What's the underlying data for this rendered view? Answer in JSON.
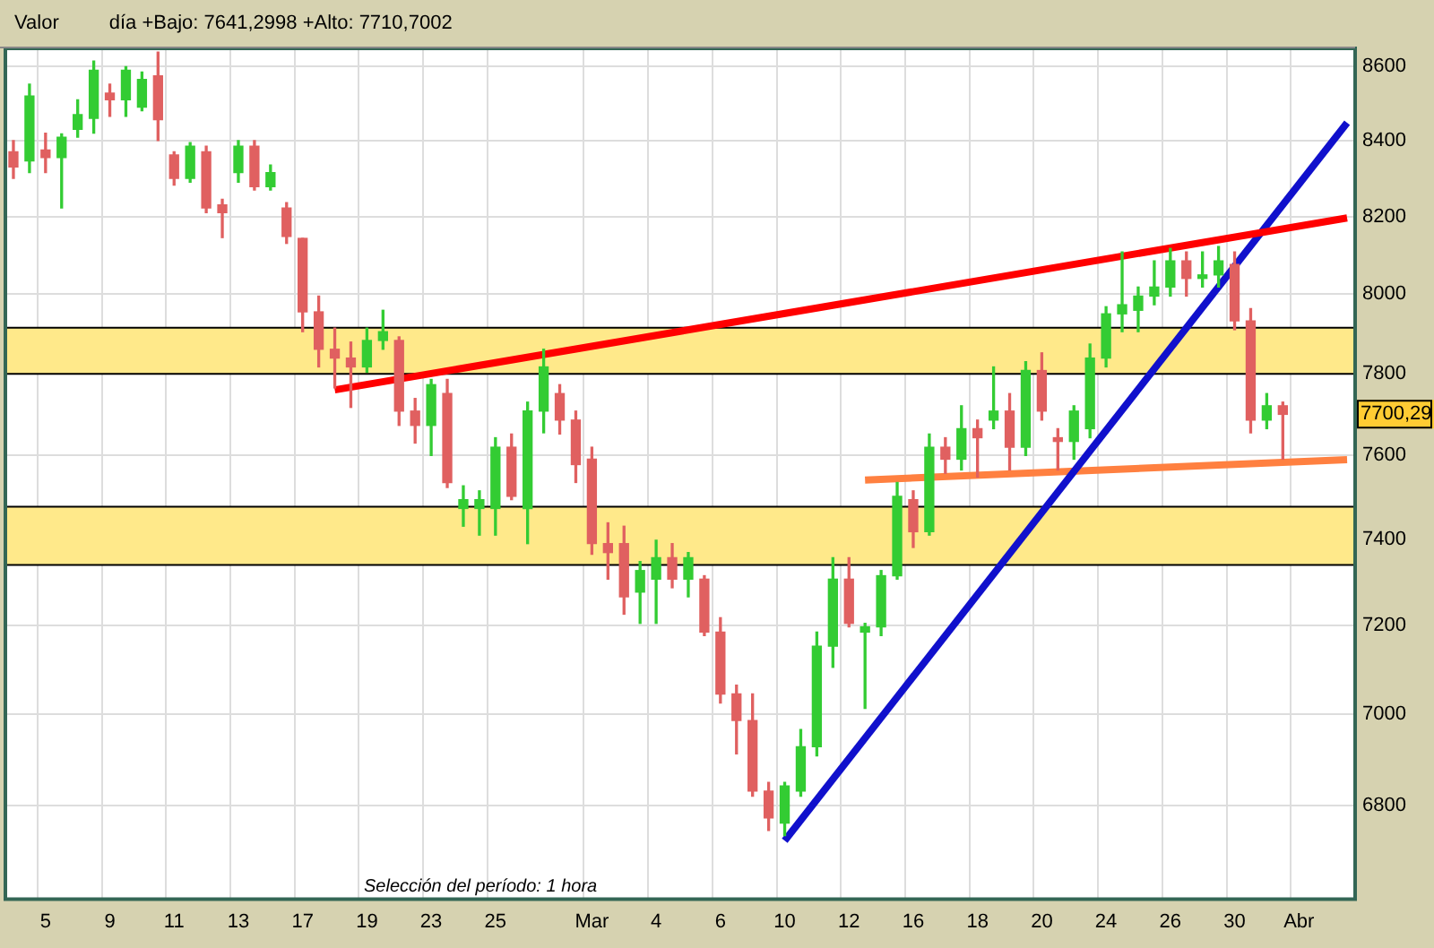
{
  "chart_data": {
    "type": "candlestick",
    "title": "Valor",
    "subtitle": "día +Bajo: 7641,2998 +Alto: 7710,7002",
    "categories": [
      null,
      null,
      "5",
      null,
      null,
      null,
      "9",
      null,
      null,
      null,
      "11",
      null,
      null,
      null,
      "13",
      null,
      null,
      null,
      "17",
      null,
      null,
      null,
      "19",
      null,
      null,
      null,
      "23",
      null,
      null,
      null,
      "25",
      null,
      null,
      null,
      null,
      null,
      "Mar",
      null,
      null,
      null,
      "4",
      null,
      null,
      null,
      "6",
      null,
      null,
      null,
      "10",
      null,
      null,
      null,
      "12",
      null,
      null,
      null,
      "16",
      null,
      null,
      null,
      "18",
      null,
      null,
      null,
      "20",
      null,
      null,
      null,
      "24",
      null,
      null,
      null,
      "26",
      null,
      null,
      null,
      "30",
      null,
      null,
      null,
      "Abr",
      null,
      null,
      null
    ],
    "ohlc": [
      [
        8370,
        8400,
        8300,
        8330
      ],
      [
        8346,
        8552,
        8315,
        8520
      ],
      [
        8375,
        8420,
        8315,
        8355
      ],
      [
        8355,
        8418,
        8222,
        8409
      ],
      [
        8430,
        8510,
        8409,
        8470
      ],
      [
        8460,
        8615,
        8420,
        8590
      ],
      [
        8528,
        8552,
        8465,
        8510
      ],
      [
        8510,
        8600,
        8465,
        8590
      ],
      [
        8490,
        8585,
        8480,
        8565
      ],
      [
        8575,
        8640,
        8400,
        8456
      ],
      [
        8362,
        8370,
        8282,
        8300
      ],
      [
        8300,
        8395,
        8290,
        8385
      ],
      [
        8370,
        8385,
        8210,
        8222
      ],
      [
        8230,
        8245,
        8145,
        8210
      ],
      [
        8315,
        8400,
        8290,
        8385
      ],
      [
        8385,
        8400,
        8269,
        8278
      ],
      [
        8278,
        8335,
        8269,
        8315
      ],
      [
        8222,
        8236,
        8130,
        8148
      ],
      [
        8143,
        8143,
        7905,
        7955
      ],
      [
        7955,
        7995,
        7817,
        7861
      ],
      [
        7861,
        7914,
        7765,
        7839
      ],
      [
        7839,
        7879,
        7717,
        7817
      ],
      [
        7817,
        7914,
        7804,
        7883
      ],
      [
        7883,
        7959,
        7861,
        7905
      ],
      [
        7883,
        7892,
        7673,
        7708
      ],
      [
        7708,
        7739,
        7630,
        7673
      ],
      [
        7673,
        7786,
        7600,
        7773
      ],
      [
        7751,
        7786,
        7523,
        7535
      ],
      [
        7473,
        7527,
        7431,
        7494
      ],
      [
        7473,
        7515,
        7410,
        7494
      ],
      [
        7473,
        7643,
        7410,
        7620
      ],
      [
        7620,
        7652,
        7494,
        7502
      ],
      [
        7473,
        7730,
        7390,
        7708
      ],
      [
        7708,
        7861,
        7655,
        7817
      ],
      [
        7751,
        7773,
        7652,
        7686
      ],
      [
        7686,
        7708,
        7535,
        7578
      ],
      [
        7591,
        7620,
        7365,
        7390
      ],
      [
        7390,
        7439,
        7307,
        7369
      ],
      [
        7390,
        7431,
        7226,
        7266
      ],
      [
        7277,
        7348,
        7205,
        7327
      ],
      [
        7307,
        7398,
        7205,
        7357
      ],
      [
        7357,
        7390,
        7287,
        7307
      ],
      [
        7307,
        7369,
        7266,
        7357
      ],
      [
        7307,
        7315,
        7177,
        7185
      ],
      [
        7185,
        7218,
        7025,
        7045
      ],
      [
        7045,
        7065,
        6912,
        6986
      ],
      [
        6986,
        7045,
        6820,
        6831
      ],
      [
        6831,
        6850,
        6746,
        6773
      ],
      [
        6762,
        6850,
        6735,
        6842
      ],
      [
        6831,
        6966,
        6820,
        6928
      ],
      [
        6928,
        7185,
        6908,
        7153
      ],
      [
        7153,
        7357,
        7105,
        7307
      ],
      [
        7307,
        7357,
        7197,
        7205
      ],
      [
        7185,
        7205,
        7013,
        7197
      ],
      [
        7197,
        7327,
        7177,
        7315
      ],
      [
        7315,
        7535,
        7307,
        7502
      ],
      [
        7494,
        7515,
        7381,
        7418
      ],
      [
        7418,
        7652,
        7410,
        7620
      ],
      [
        7620,
        7643,
        7557,
        7591
      ],
      [
        7591,
        7721,
        7565,
        7665
      ],
      [
        7665,
        7686,
        7548,
        7643
      ],
      [
        7686,
        7817,
        7665,
        7708
      ],
      [
        7708,
        7751,
        7565,
        7620
      ],
      [
        7620,
        7830,
        7600,
        7808
      ],
      [
        7808,
        7852,
        7686,
        7708
      ],
      [
        7643,
        7665,
        7565,
        7634
      ],
      [
        7634,
        7721,
        7591,
        7708
      ],
      [
        7665,
        7874,
        7643,
        7839
      ],
      [
        7839,
        7968,
        7817,
        7950
      ],
      [
        7950,
        8108,
        7905,
        7973
      ],
      [
        7959,
        8018,
        7905,
        7995
      ],
      [
        7995,
        8085,
        7973,
        8018
      ],
      [
        8018,
        8117,
        7995,
        8085
      ],
      [
        8085,
        8108,
        7995,
        8040
      ],
      [
        8040,
        8108,
        8018,
        8049
      ],
      [
        8049,
        8122,
        8018,
        8085
      ],
      [
        8076,
        8108,
        7910,
        7932
      ],
      [
        7932,
        7963,
        7655,
        7686
      ],
      [
        7686,
        7751,
        7665,
        7721
      ],
      [
        7721,
        7730,
        7591,
        7700
      ],
      null,
      null,
      null,
      null
    ],
    "colors": [
      "#e06060",
      "#33cc33",
      "#e06060",
      "#33cc33",
      "#33cc33",
      "#33cc33",
      "#e06060",
      "#33cc33",
      "#33cc33",
      "#e06060",
      "#e06060",
      "#33cc33",
      "#e06060",
      "#e06060",
      "#33cc33",
      "#e06060",
      "#33cc33",
      "#e06060",
      "#e06060",
      "#e06060",
      "#e06060",
      "#e06060",
      "#33cc33",
      "#33cc33",
      "#e06060",
      "#e06060",
      "#33cc33",
      "#e06060",
      "#33cc33",
      "#33cc33",
      "#33cc33",
      "#e06060",
      "#33cc33",
      "#33cc33",
      "#e06060",
      "#e06060",
      "#e06060",
      "#e06060",
      "#e06060",
      "#33cc33",
      "#33cc33",
      "#e06060",
      "#33cc33",
      "#e06060",
      "#e06060",
      "#e06060",
      "#e06060",
      "#e06060",
      "#33cc33",
      "#33cc33",
      "#33cc33",
      "#33cc33",
      "#e06060",
      "#33cc33",
      "#33cc33",
      "#33cc33",
      "#e06060",
      "#33cc33",
      "#e06060",
      "#33cc33",
      "#e06060",
      "#33cc33",
      "#e06060",
      "#33cc33",
      "#e06060",
      "#e06060",
      "#33cc33",
      "#33cc33",
      "#33cc33",
      "#33cc33",
      "#33cc33",
      "#33cc33",
      "#33cc33",
      "#e06060",
      "#33cc33",
      "#33cc33",
      "#e06060",
      "#e06060",
      "#33cc33",
      "#e06060",
      null,
      null,
      null,
      null
    ],
    "series": [
      {
        "type": "line",
        "color": "#ff0000",
        "values": [
          null,
          null,
          null,
          null,
          null,
          null,
          null,
          null,
          null,
          null,
          null,
          null,
          null,
          null,
          null,
          null,
          null,
          null,
          null,
          null,
          7760,
          null,
          null,
          null,
          null,
          null,
          null,
          null,
          null,
          null,
          null,
          null,
          null,
          null,
          null,
          null,
          null,
          null,
          null,
          null,
          null,
          null,
          null,
          null,
          null,
          null,
          null,
          null,
          null,
          null,
          null,
          null,
          null,
          null,
          null,
          null,
          null,
          null,
          null,
          null,
          null,
          null,
          null,
          null,
          null,
          null,
          null,
          null,
          null,
          null,
          null,
          null,
          null,
          null,
          null,
          null,
          null,
          null,
          null,
          null,
          null,
          null,
          null,
          8196
        ]
      },
      {
        "type": "line",
        "color": "#1010cc",
        "values": [
          null,
          null,
          null,
          null,
          null,
          null,
          null,
          null,
          null,
          null,
          null,
          null,
          null,
          null,
          null,
          null,
          null,
          null,
          null,
          null,
          null,
          null,
          null,
          null,
          null,
          null,
          null,
          null,
          null,
          null,
          null,
          null,
          null,
          null,
          null,
          null,
          null,
          null,
          null,
          null,
          null,
          null,
          null,
          null,
          null,
          null,
          null,
          null,
          6724,
          null,
          null,
          null,
          null,
          null,
          null,
          null,
          null,
          null,
          null,
          null,
          null,
          null,
          null,
          null,
          null,
          null,
          null,
          null,
          null,
          null,
          null,
          null,
          null,
          null,
          null,
          null,
          null,
          null,
          null,
          null,
          null,
          null,
          null,
          8448
        ]
      },
      {
        "type": "line",
        "color": "#ff8040",
        "values": [
          null,
          null,
          null,
          null,
          null,
          null,
          null,
          null,
          null,
          null,
          null,
          null,
          null,
          null,
          null,
          null,
          null,
          null,
          null,
          null,
          null,
          null,
          null,
          null,
          null,
          null,
          null,
          null,
          null,
          null,
          null,
          null,
          null,
          null,
          null,
          null,
          null,
          null,
          null,
          null,
          null,
          null,
          null,
          null,
          null,
          null,
          null,
          null,
          null,
          null,
          null,
          null,
          null,
          7541,
          null,
          null,
          null,
          null,
          null,
          null,
          null,
          null,
          null,
          null,
          null,
          null,
          null,
          null,
          null,
          null,
          null,
          null,
          null,
          null,
          null,
          null,
          null,
          null,
          null,
          null,
          null,
          null,
          null,
          7590
        ]
      }
    ],
    "bands": [
      {
        "axis": "y",
        "from": 7340,
        "to": 7477,
        "color": "#ffe98a"
      },
      {
        "axis": "y",
        "from": 7800,
        "to": 7915,
        "color": "#ffe98a"
      }
    ],
    "annotations": [
      "Selección del período: 1 hora",
      {
        "text": "7700,29",
        "y": 7700.29
      }
    ],
    "log": "y",
    "ylim": [
      6600,
      8650
    ],
    "yticks": [
      6800,
      7000,
      7200,
      7400,
      7600,
      7800,
      8000,
      8200,
      8400,
      8600
    ],
    "grid": true
  }
}
